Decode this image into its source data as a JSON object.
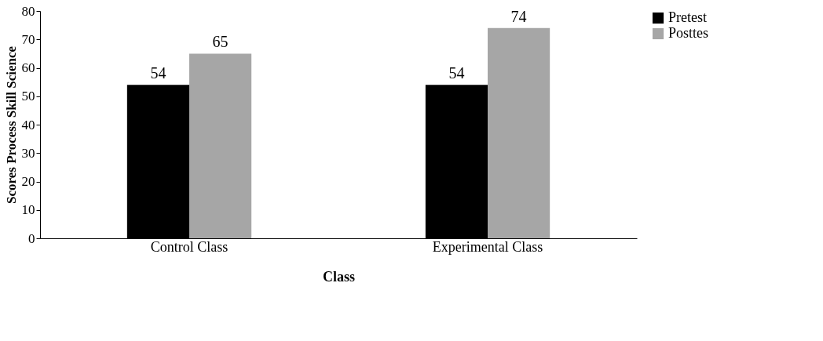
{
  "chart_data": {
    "type": "bar",
    "xlabel": "Class",
    "ylabel": "Scores Process Skill Science",
    "categories": [
      "Control Class",
      "Experimental Class"
    ],
    "series": [
      {
        "name": "Pretest",
        "color": "#000000",
        "values": [
          54,
          54
        ]
      },
      {
        "name": "Posttes",
        "color": "#a6a6a6",
        "values": [
          65,
          74
        ]
      }
    ],
    "ylim": [
      0,
      80
    ],
    "yticks": [
      0,
      10,
      20,
      30,
      40,
      50,
      60,
      70,
      80
    ],
    "grid": false,
    "legend": "right",
    "data_labels": true
  }
}
